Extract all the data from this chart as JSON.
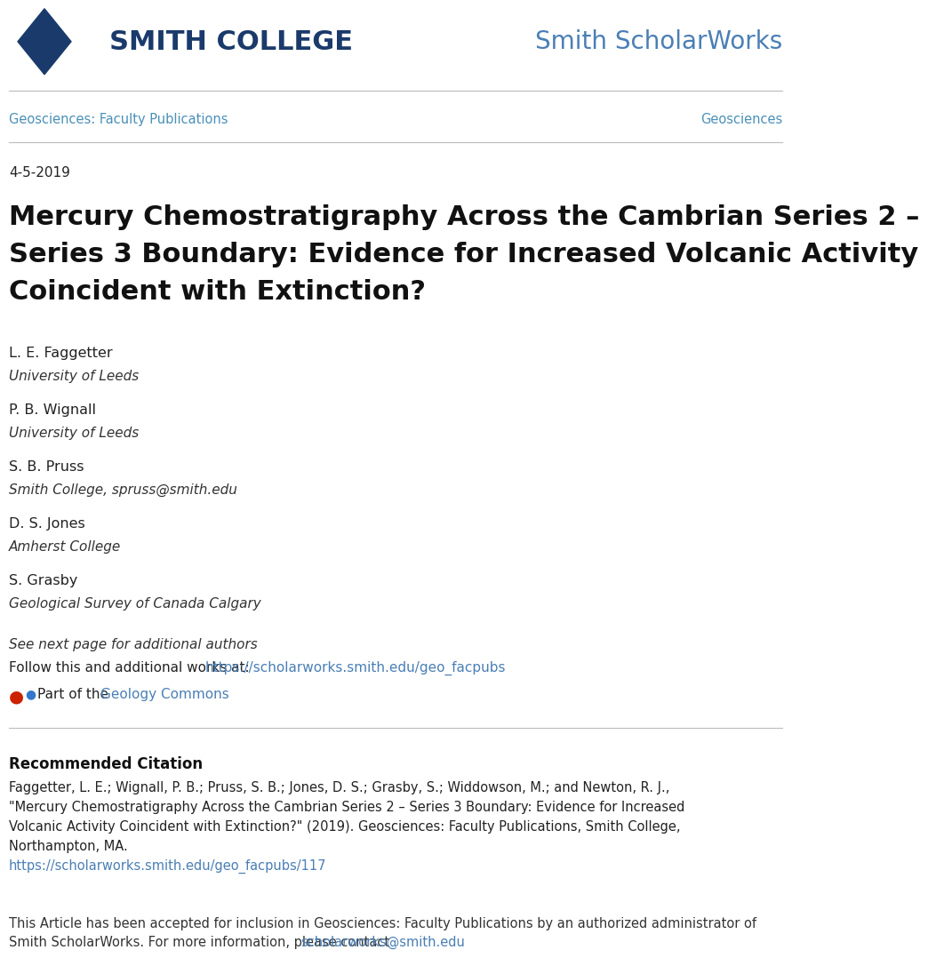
{
  "bg_color": "#ffffff",
  "navy": "#1a3a6b",
  "gold": "#e8a020",
  "scholar_works_color": "#4a7fb5",
  "link_color": "#4a7fb5",
  "geo_link_color": "#4a90b8",
  "divider_color": "#bbbbbb",
  "date": "4-5-2019",
  "paper_title_line1": "Mercury Chemostratigraphy Across the Cambrian Series 2 –",
  "paper_title_line2": "Series 3 Boundary: Evidence for Increased Volcanic Activity",
  "paper_title_line3": "Coincident with Extinction?",
  "smith_college_text": "SMITH COLLEGE",
  "scholar_works_text": "Smith ScholarWorks",
  "nav_left": "Geosciences: Faculty Publications",
  "nav_right": "Geosciences",
  "authors": [
    {
      "name": "L. E. Faggetter",
      "affil": "University of Leeds"
    },
    {
      "name": "P. B. Wignall",
      "affil": "University of Leeds"
    },
    {
      "name": "S. B. Pruss",
      "affil": "Smith College, spruss@smith.edu"
    },
    {
      "name": "D. S. Jones",
      "affil": "Amherst College"
    },
    {
      "name": "S. Grasby",
      "affil": "Geological Survey of Canada Calgary"
    }
  ],
  "see_next": "See next page for additional authors",
  "follow_text": "Follow this and additional works at: ",
  "follow_link": "https://scholarworks.smith.edu/geo_facpubs",
  "part_of_text": "Part of the ",
  "geology_commons": "Geology Commons",
  "rec_citation_title": "Recommended Citation",
  "citation_lines": [
    "Faggetter, L. E.; Wignall, P. B.; Pruss, S. B.; Jones, D. S.; Grasby, S.; Widdowson, M.; and Newton, R. J.,",
    "\"Mercury Chemostratigraphy Across the Cambrian Series 2 – Series 3 Boundary: Evidence for Increased",
    "Volcanic Activity Coincident with Extinction?\" (2019). Geosciences: Faculty Publications, Smith College,",
    "Northampton, MA."
  ],
  "citation_link": "https://scholarworks.smith.edu/geo_facpubs/117",
  "footer_line1": "This Article has been accepted for inclusion in Geosciences: Faculty Publications by an authorized administrator of",
  "footer_line2": "Smith ScholarWorks. For more information, please contact ",
  "footer_link": "scholarworks@smith.edu"
}
